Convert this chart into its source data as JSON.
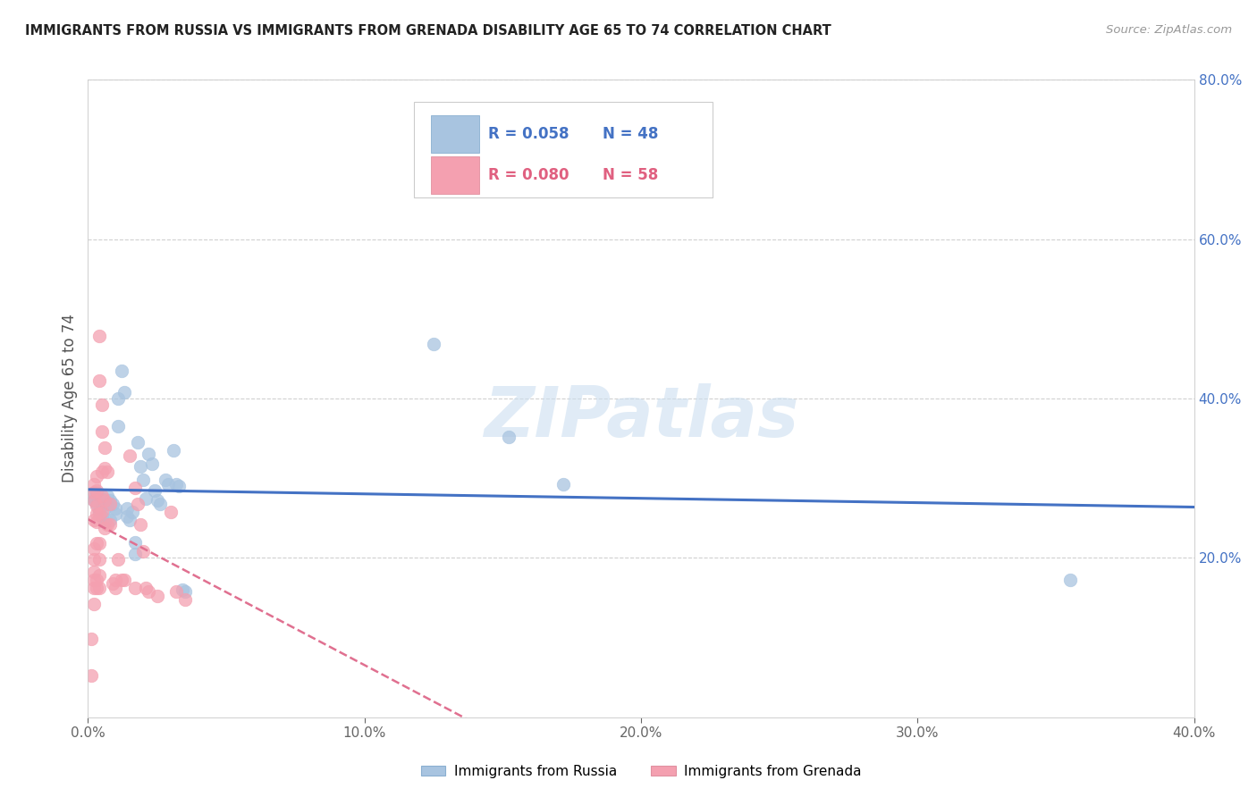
{
  "title": "IMMIGRANTS FROM RUSSIA VS IMMIGRANTS FROM GRENADA DISABILITY AGE 65 TO 74 CORRELATION CHART",
  "source_text": "Source: ZipAtlas.com",
  "ylabel": "Disability Age 65 to 74",
  "xlim": [
    0.0,
    0.4
  ],
  "ylim": [
    0.0,
    0.8
  ],
  "xtick_vals": [
    0.0,
    0.1,
    0.2,
    0.3,
    0.4
  ],
  "ytick_vals_right": [
    0.2,
    0.4,
    0.6,
    0.8
  ],
  "russia_color": "#a8c4e0",
  "grenada_color": "#f4a0b0",
  "russia_edge_color": "#7aafd4",
  "grenada_edge_color": "#e8829a",
  "russia_R": 0.058,
  "russia_N": 48,
  "grenada_R": 0.08,
  "grenada_N": 58,
  "russia_trendline_color": "#4472c4",
  "grenada_trendline_color": "#e07090",
  "watermark": "ZIPatlas",
  "legend_R_russia_color": "#4472c4",
  "legend_R_grenada_color": "#e06080",
  "legend_N_russia_color": "#4472c4",
  "legend_N_grenada_color": "#e06080",
  "russia_scatter": [
    [
      0.001,
      0.278
    ],
    [
      0.002,
      0.272
    ],
    [
      0.003,
      0.268
    ],
    [
      0.003,
      0.282
    ],
    [
      0.004,
      0.26
    ],
    [
      0.004,
      0.258
    ],
    [
      0.005,
      0.252
    ],
    [
      0.005,
      0.268
    ],
    [
      0.005,
      0.275
    ],
    [
      0.006,
      0.262
    ],
    [
      0.006,
      0.245
    ],
    [
      0.007,
      0.278
    ],
    [
      0.007,
      0.268
    ],
    [
      0.008,
      0.272
    ],
    [
      0.008,
      0.248
    ],
    [
      0.009,
      0.268
    ],
    [
      0.01,
      0.262
    ],
    [
      0.01,
      0.255
    ],
    [
      0.011,
      0.4
    ],
    [
      0.011,
      0.365
    ],
    [
      0.012,
      0.435
    ],
    [
      0.013,
      0.408
    ],
    [
      0.014,
      0.262
    ],
    [
      0.014,
      0.252
    ],
    [
      0.015,
      0.248
    ],
    [
      0.016,
      0.258
    ],
    [
      0.017,
      0.205
    ],
    [
      0.017,
      0.22
    ],
    [
      0.018,
      0.345
    ],
    [
      0.019,
      0.315
    ],
    [
      0.02,
      0.298
    ],
    [
      0.021,
      0.275
    ],
    [
      0.022,
      0.33
    ],
    [
      0.023,
      0.318
    ],
    [
      0.024,
      0.285
    ],
    [
      0.025,
      0.272
    ],
    [
      0.026,
      0.268
    ],
    [
      0.028,
      0.298
    ],
    [
      0.029,
      0.292
    ],
    [
      0.031,
      0.335
    ],
    [
      0.032,
      0.292
    ],
    [
      0.033,
      0.29
    ],
    [
      0.034,
      0.16
    ],
    [
      0.035,
      0.158
    ],
    [
      0.125,
      0.468
    ],
    [
      0.152,
      0.352
    ],
    [
      0.172,
      0.292
    ],
    [
      0.355,
      0.172
    ]
  ],
  "grenada_scatter": [
    [
      0.001,
      0.052
    ],
    [
      0.001,
      0.098
    ],
    [
      0.002,
      0.142
    ],
    [
      0.002,
      0.162
    ],
    [
      0.002,
      0.172
    ],
    [
      0.002,
      0.182
    ],
    [
      0.002,
      0.198
    ],
    [
      0.002,
      0.212
    ],
    [
      0.002,
      0.248
    ],
    [
      0.002,
      0.272
    ],
    [
      0.002,
      0.282
    ],
    [
      0.002,
      0.292
    ],
    [
      0.003,
      0.162
    ],
    [
      0.003,
      0.172
    ],
    [
      0.003,
      0.218
    ],
    [
      0.003,
      0.245
    ],
    [
      0.003,
      0.255
    ],
    [
      0.003,
      0.265
    ],
    [
      0.003,
      0.285
    ],
    [
      0.003,
      0.302
    ],
    [
      0.004,
      0.162
    ],
    [
      0.004,
      0.178
    ],
    [
      0.004,
      0.198
    ],
    [
      0.004,
      0.218
    ],
    [
      0.004,
      0.255
    ],
    [
      0.004,
      0.422
    ],
    [
      0.004,
      0.478
    ],
    [
      0.005,
      0.258
    ],
    [
      0.005,
      0.278
    ],
    [
      0.005,
      0.308
    ],
    [
      0.005,
      0.358
    ],
    [
      0.005,
      0.392
    ],
    [
      0.006,
      0.238
    ],
    [
      0.006,
      0.272
    ],
    [
      0.006,
      0.312
    ],
    [
      0.006,
      0.338
    ],
    [
      0.007,
      0.242
    ],
    [
      0.007,
      0.308
    ],
    [
      0.008,
      0.242
    ],
    [
      0.008,
      0.268
    ],
    [
      0.009,
      0.168
    ],
    [
      0.01,
      0.162
    ],
    [
      0.01,
      0.172
    ],
    [
      0.011,
      0.198
    ],
    [
      0.012,
      0.172
    ],
    [
      0.013,
      0.172
    ],
    [
      0.015,
      0.328
    ],
    [
      0.017,
      0.162
    ],
    [
      0.017,
      0.288
    ],
    [
      0.018,
      0.268
    ],
    [
      0.019,
      0.242
    ],
    [
      0.02,
      0.208
    ],
    [
      0.021,
      0.162
    ],
    [
      0.022,
      0.158
    ],
    [
      0.025,
      0.152
    ],
    [
      0.03,
      0.258
    ],
    [
      0.032,
      0.158
    ],
    [
      0.035,
      0.148
    ]
  ]
}
